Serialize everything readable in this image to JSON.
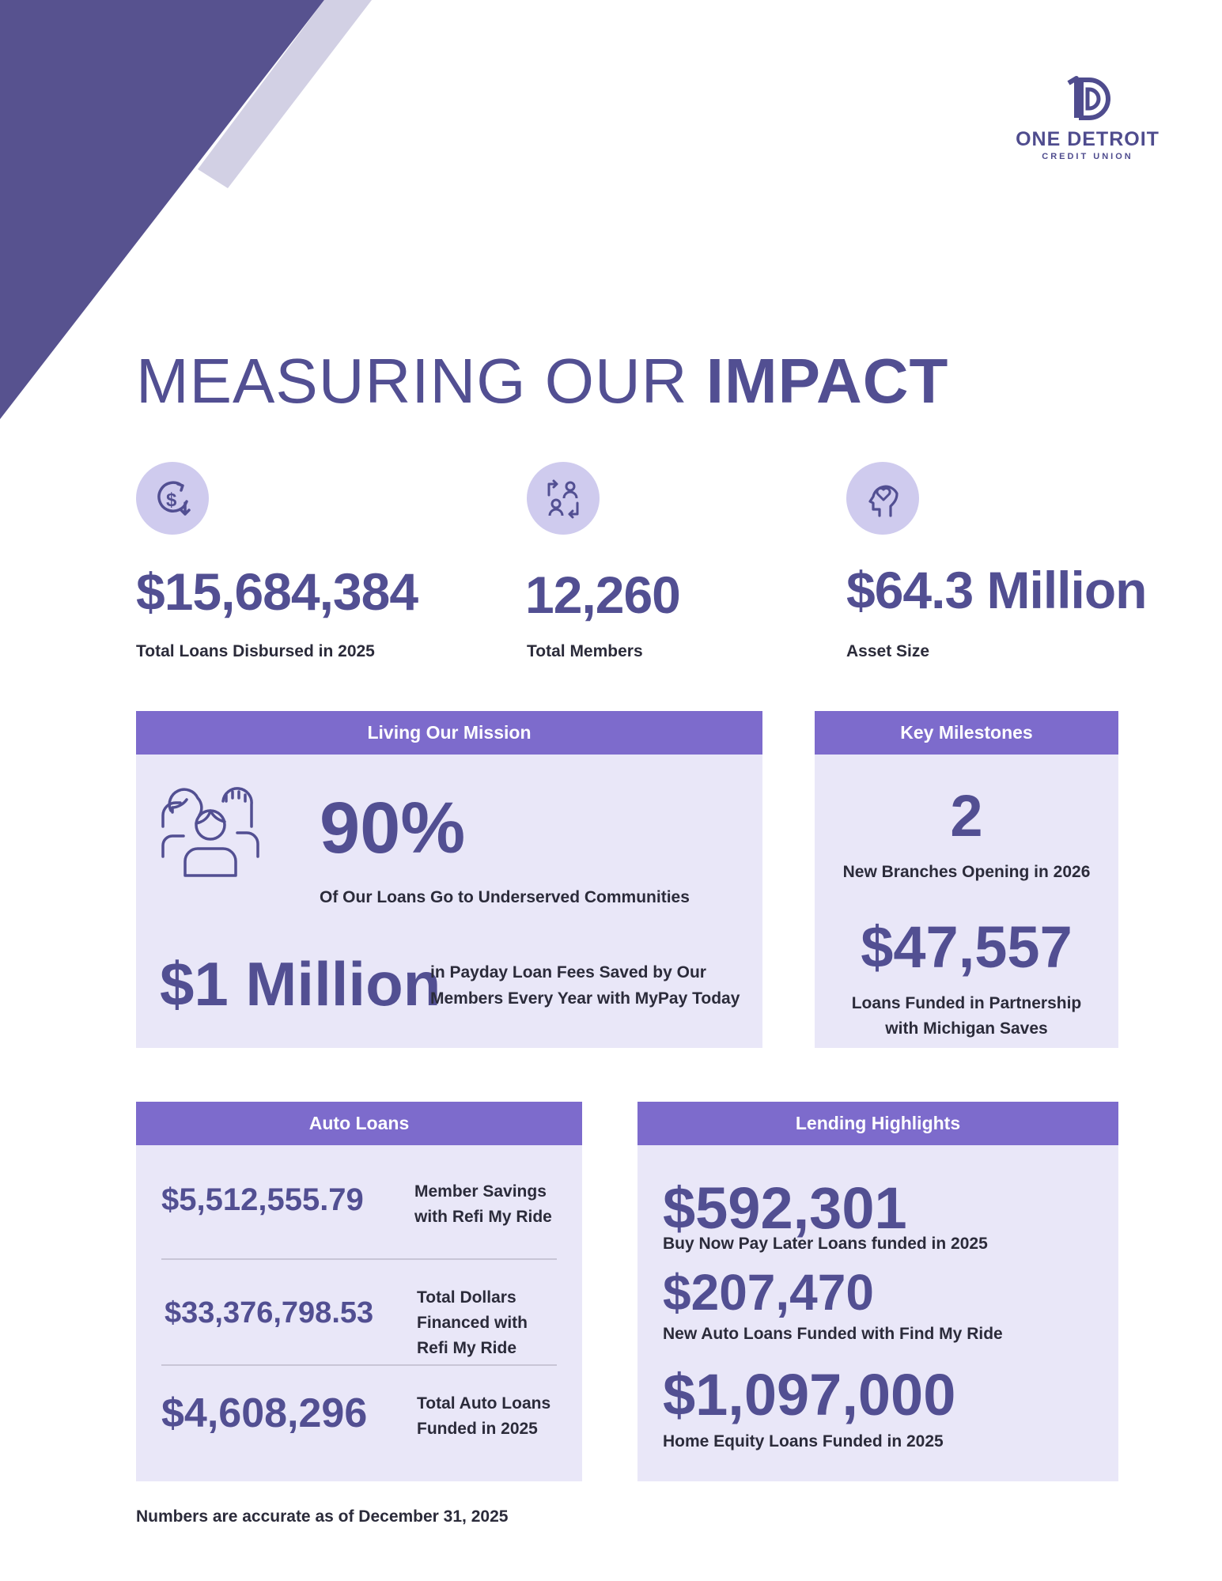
{
  "logo": {
    "name": "ONE DETROIT",
    "sub": "CREDIT UNION"
  },
  "title": {
    "light": "MEASURING OUR ",
    "bold": "IMPACT"
  },
  "stats": [
    {
      "icon": "dollar-return-icon",
      "value": "$15,684,384",
      "label": "Total Loans Disbursed in 2025"
    },
    {
      "icon": "members-exchange-icon",
      "value": "12,260",
      "label": "Total Members"
    },
    {
      "icon": "heart-mind-icon",
      "value": "$64.3 Million",
      "label": "Asset Size"
    }
  ],
  "mission": {
    "heading": "Living Our Mission",
    "percent": "90%",
    "percent_label": "Of Our Loans Go to Underserved Communities",
    "million": "$1 Million",
    "million_label_1": "in Payday Loan Fees Saved by Our",
    "million_label_2": "Members Every Year with MyPay Today"
  },
  "milestones": {
    "heading": "Key Milestones",
    "branches": "2",
    "branches_label": "New Branches Opening in 2026",
    "funded": "$47,557",
    "funded_label_1": "Loans Funded in Partnership",
    "funded_label_2": "with Michigan Saves"
  },
  "auto": {
    "heading": "Auto Loans",
    "rows": [
      {
        "value": "$5,512,555.79",
        "label": [
          "Member Savings",
          "with Refi My Ride"
        ]
      },
      {
        "value": "$33,376,798.53",
        "label": [
          "Total Dollars",
          "Financed with",
          "Refi My Ride"
        ]
      },
      {
        "value": "$4,608,296",
        "label": [
          "Total Auto Loans",
          "Funded in 2025"
        ]
      }
    ]
  },
  "lending": {
    "heading": "Lending Highlights",
    "items": [
      {
        "value": "$592,301",
        "label": "Buy Now Pay Later Loans funded in 2025"
      },
      {
        "value": "$207,470",
        "label": "New Auto Loans Funded with Find My Ride"
      },
      {
        "value": "$1,097,000",
        "label": "Home Equity Loans Funded in 2025"
      }
    ]
  },
  "footnote": "Numbers are accurate as of December 31, 2025",
  "colors": {
    "primary": "#524f92",
    "header": "#7d6bcc",
    "panel": "#e9e7f8",
    "icon_bg": "#cfcbee",
    "triangle": "#57528f",
    "stripe": "#d2d0e4"
  }
}
